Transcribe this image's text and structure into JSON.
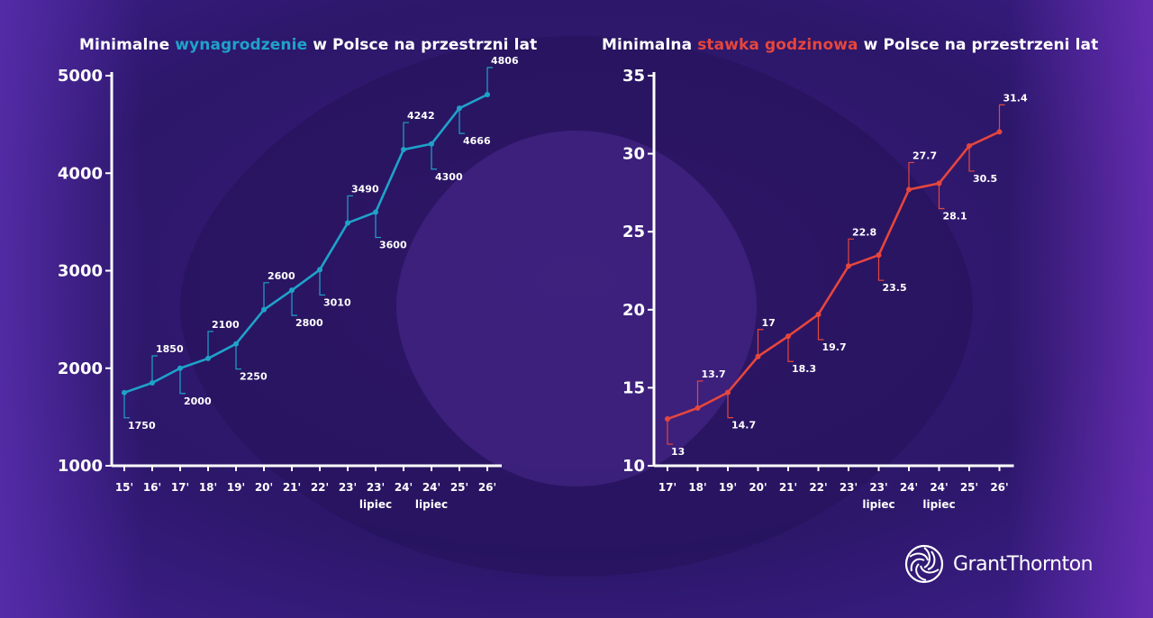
{
  "colors": {
    "background": "#2b1864",
    "blue_series": "#1fa2c9",
    "red_series": "#e5463d",
    "text": "#ffffff"
  },
  "logo": {
    "text": "GrantThornton",
    "icon": "grant-thornton-swirl-icon"
  },
  "chart_data": [
    {
      "type": "line",
      "title": "Minimalne wynagrodzenie w Polsce na przestrzni lat",
      "title_parts": {
        "before": "Minimalne ",
        "highlight": "wynagrodzenie",
        "after": " w Polsce na przestrzni lat"
      },
      "highlight_color": "#1fa2c9",
      "series_color": "#1fa2c9",
      "xlabel": "",
      "ylabel": "",
      "ylim": [
        1000,
        5000
      ],
      "yticks": [
        1000,
        2000,
        3000,
        4000,
        5000
      ],
      "categories": [
        "15'",
        "16'",
        "17'",
        "18'",
        "19'",
        "20'",
        "21'",
        "22'",
        "23'",
        "23' lipiec",
        "24'",
        "24' lipiec",
        "25'",
        "26'"
      ],
      "category_lines": [
        [
          "15'"
        ],
        [
          "16'"
        ],
        [
          "17'"
        ],
        [
          "18'"
        ],
        [
          "19'"
        ],
        [
          "20'"
        ],
        [
          "21'"
        ],
        [
          "22'"
        ],
        [
          "23'"
        ],
        [
          "23'",
          "lipiec"
        ],
        [
          "24'"
        ],
        [
          "24'",
          "lipiec"
        ],
        [
          "25'"
        ],
        [
          "26'"
        ]
      ],
      "values": [
        1750,
        1850,
        2000,
        2100,
        2250,
        2600,
        2800,
        3010,
        3490,
        3600,
        4242,
        4300,
        4666,
        4806
      ],
      "labels": [
        "1750",
        "1850",
        "2000",
        "2100",
        "2250",
        "2600",
        "2800",
        "3010",
        "3490",
        "3600",
        "4242",
        "4300",
        "4666",
        "4806"
      ],
      "label_positions": [
        "below",
        "above",
        "below",
        "above",
        "below",
        "above",
        "below",
        "below",
        "above",
        "below",
        "above",
        "below",
        "below",
        "above"
      ],
      "grid": false,
      "legend": "none"
    },
    {
      "type": "line",
      "title": "Minimalna stawka godzinowa w Polsce na przestrzeni lat",
      "title_parts": {
        "before": "Minimalna ",
        "highlight": "stawka godzinowa",
        "after": " w Polsce na przestrzeni lat"
      },
      "highlight_color": "#e5463d",
      "series_color": "#e5463d",
      "xlabel": "",
      "ylabel": "",
      "ylim": [
        10,
        35
      ],
      "yticks": [
        10,
        15,
        20,
        25,
        30,
        35
      ],
      "categories": [
        "17'",
        "18'",
        "19'",
        "20'",
        "21'",
        "22'",
        "23'",
        "23' lipiec",
        "24'",
        "24' lipiec",
        "25'",
        "26'"
      ],
      "category_lines": [
        [
          "17'"
        ],
        [
          "18'"
        ],
        [
          "19'"
        ],
        [
          "20'"
        ],
        [
          "21'"
        ],
        [
          "22'"
        ],
        [
          "23'"
        ],
        [
          "23'",
          "lipiec"
        ],
        [
          "24'"
        ],
        [
          "24'",
          "lipiec"
        ],
        [
          "25'"
        ],
        [
          "26'"
        ]
      ],
      "values": [
        13,
        13.7,
        14.7,
        17,
        18.3,
        19.7,
        22.8,
        23.5,
        27.7,
        28.1,
        30.5,
        31.4
      ],
      "labels": [
        "13",
        "13.7",
        "14.7",
        "17",
        "18.3",
        "19.7",
        "22.8",
        "23.5",
        "27.7",
        "28.1",
        "30.5",
        "31.4"
      ],
      "label_positions": [
        "below",
        "above",
        "below",
        "above",
        "below",
        "below",
        "above",
        "below",
        "above",
        "below",
        "below",
        "above"
      ],
      "grid": false,
      "legend": "none"
    }
  ]
}
